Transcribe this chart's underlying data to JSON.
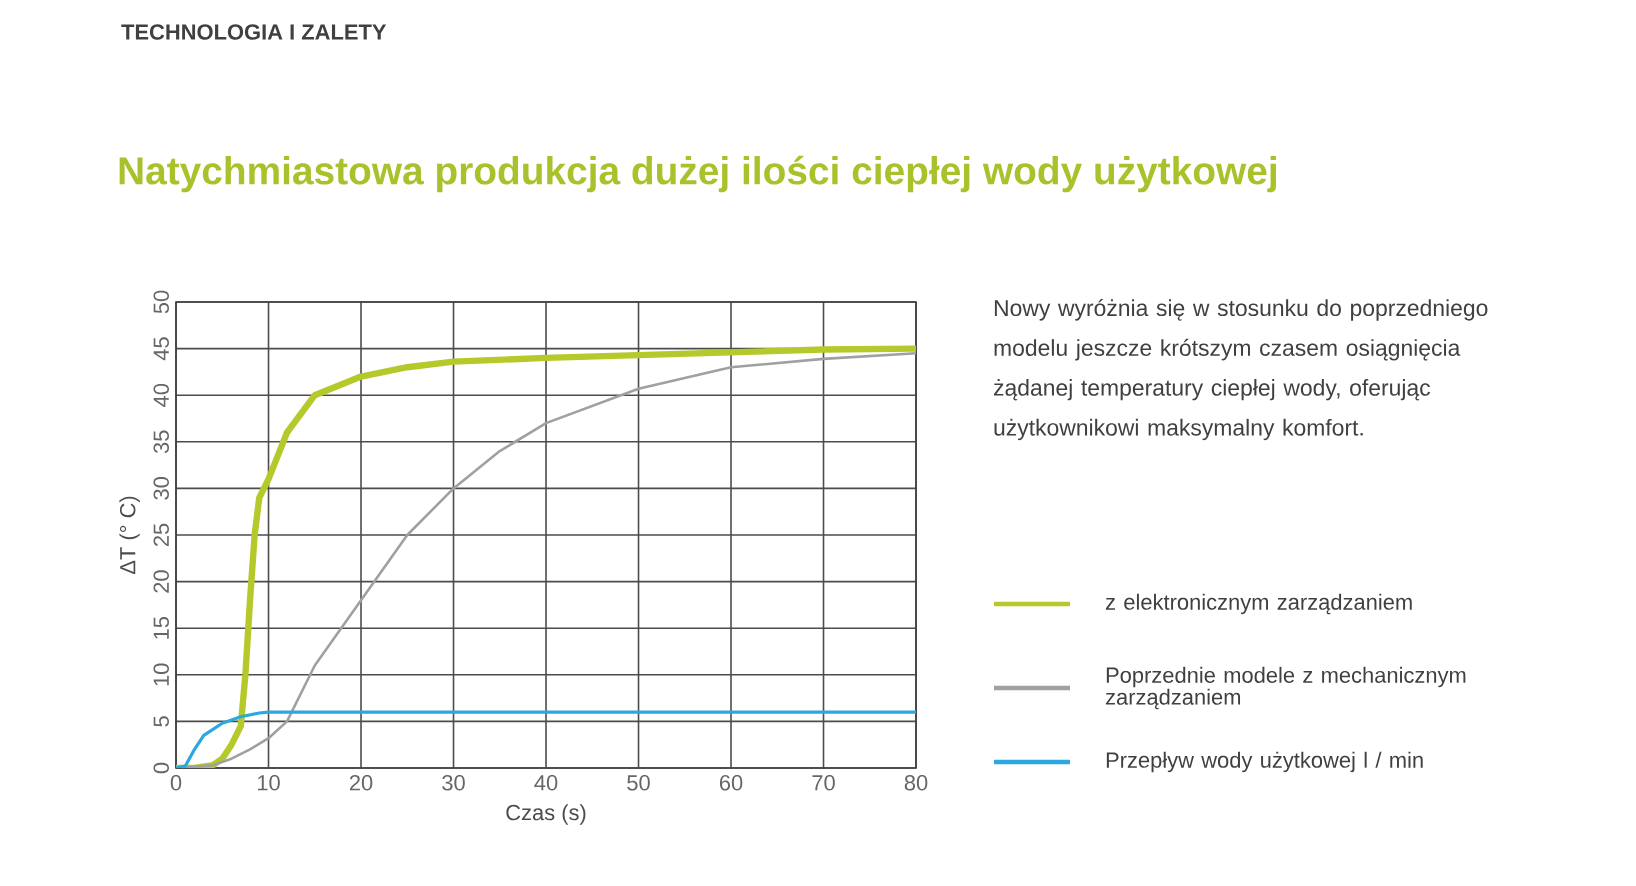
{
  "chart_data": {
    "type": "line",
    "title": "Natychmiastowa produkcja dużej ilości ciepłej wody użytkowej",
    "xlabel": "Czas (s)",
    "ylabel": "ΔT (° C)",
    "annotations": [
      "TECHNOLOGIA I ZALETY",
      "Nowy wyróżnia się w stosunku do poprzedniego modelu jeszcze krótszym czasem osiągnięcia żądanej temperatury ciepłej wody, oferując użytkownikowi maksymalny komfort."
    ],
    "xlim": [
      0,
      80
    ],
    "ylim": [
      0,
      50
    ],
    "xticks": [
      0,
      10,
      20,
      30,
      40,
      50,
      60,
      70,
      80
    ],
    "yticks": [
      0,
      5,
      10,
      15,
      20,
      25,
      30,
      35,
      40,
      45,
      50
    ],
    "grid": true,
    "legend": "right",
    "marker": "none",
    "line_style": "solid",
    "series": [
      {
        "name": "z elektronicznym zarządzaniem",
        "color": "#b5c92a",
        "x": [
          0,
          2,
          4,
          5,
          6,
          7,
          7.5,
          8,
          8.5,
          9,
          10,
          12,
          15,
          20,
          25,
          30,
          40,
          50,
          60,
          70,
          80
        ],
        "values": [
          0,
          0,
          0.3,
          1,
          2.5,
          4.5,
          10,
          18,
          25,
          29,
          31,
          36,
          40,
          42,
          43,
          43.6,
          44,
          44.3,
          44.6,
          44.9,
          45
        ]
      },
      {
        "name": "Poprzednie modele z mechanicznym zarządzaniem",
        "color": "#a0a0a0",
        "x": [
          0,
          4,
          6,
          8,
          10,
          12,
          15,
          20,
          25,
          30,
          35,
          40,
          50,
          60,
          70,
          80
        ],
        "values": [
          0,
          0.3,
          1,
          2,
          3.2,
          5,
          11,
          18,
          25,
          30,
          34,
          37,
          40.7,
          43,
          43.9,
          44.5
        ]
      },
      {
        "name": "Przepływ wody użytkowej l / min",
        "color": "#2aa8df",
        "x": [
          0,
          1,
          2,
          3,
          5,
          7,
          9,
          10,
          12,
          20,
          40,
          60,
          80
        ],
        "values": [
          0,
          0.2,
          2,
          3.5,
          4.8,
          5.5,
          5.9,
          6,
          6,
          6,
          6,
          6,
          6
        ]
      }
    ]
  }
}
